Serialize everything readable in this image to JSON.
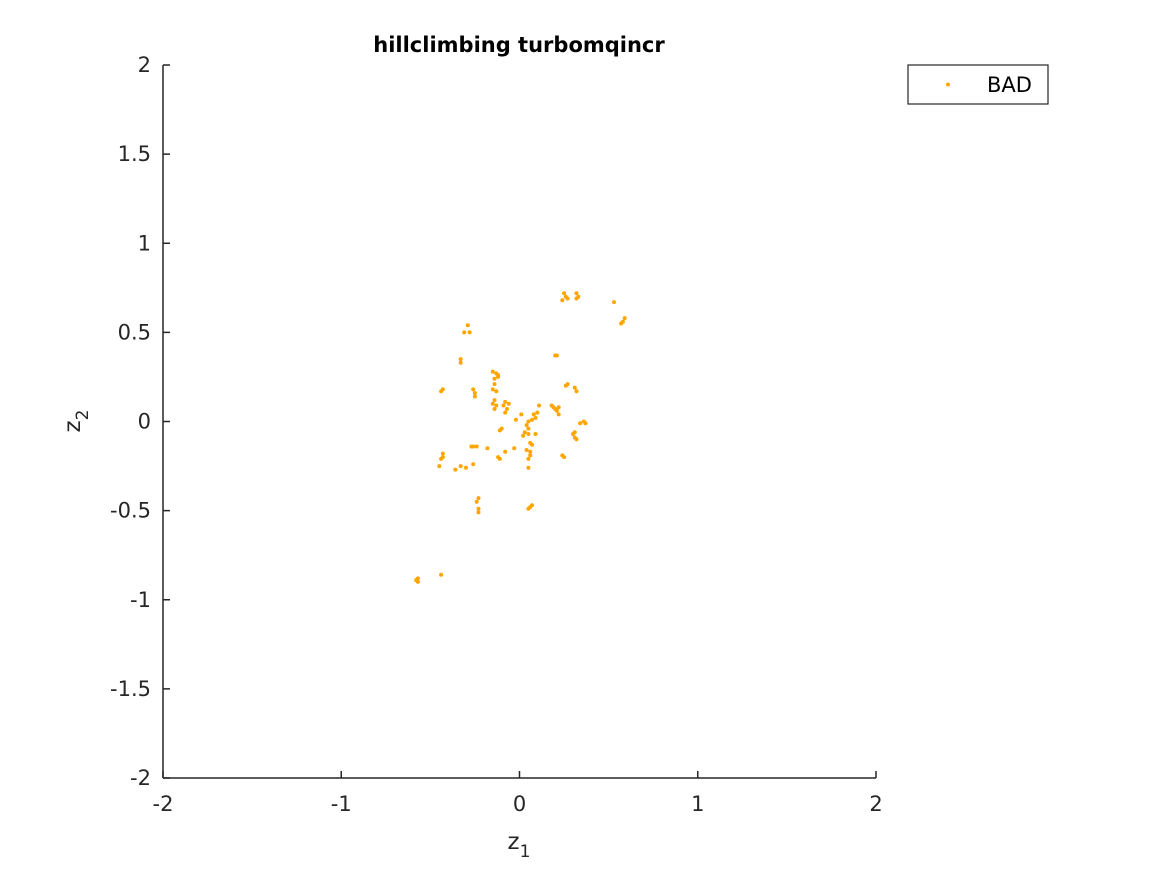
{
  "chart_data": {
    "type": "scatter",
    "title": "hillclimbing turbomqincr",
    "xlabel": "z",
    "xlabel_sub": "1",
    "ylabel": "z",
    "ylabel_sub": "2",
    "xlim": [
      -2,
      2
    ],
    "ylim": [
      -2,
      2
    ],
    "xticks": [
      -2,
      -1,
      0,
      1,
      2
    ],
    "yticks": [
      -2,
      -1.5,
      -1,
      -0.5,
      0,
      0.5,
      1,
      1.5,
      2
    ],
    "xtick_labels": [
      "-2",
      "-1",
      "0",
      "1",
      "2"
    ],
    "ytick_labels": [
      "-2",
      "-1.5",
      "-1",
      "-0.5",
      "0",
      "0.5",
      "1",
      "1.5",
      "2"
    ],
    "grid": false,
    "legend_position": "top-right",
    "series": [
      {
        "name": "BAD",
        "color": "#FFA500",
        "points": [
          [
            0.25,
            0.72
          ],
          [
            0.26,
            0.7
          ],
          [
            0.24,
            0.68
          ],
          [
            0.27,
            0.69
          ],
          [
            0.32,
            0.72
          ],
          [
            0.33,
            0.7
          ],
          [
            0.32,
            0.69
          ],
          [
            0.53,
            0.67
          ],
          [
            0.59,
            0.58
          ],
          [
            0.58,
            0.56
          ],
          [
            0.57,
            0.55
          ],
          [
            -0.29,
            0.54
          ],
          [
            -0.31,
            0.5
          ],
          [
            -0.28,
            0.5
          ],
          [
            -0.33,
            0.35
          ],
          [
            -0.33,
            0.33
          ],
          [
            0.21,
            0.37
          ],
          [
            0.2,
            0.37
          ],
          [
            -0.43,
            0.18
          ],
          [
            -0.44,
            0.17
          ],
          [
            -0.26,
            0.18
          ],
          [
            -0.25,
            0.16
          ],
          [
            -0.25,
            0.14
          ],
          [
            -0.15,
            0.28
          ],
          [
            -0.13,
            0.27
          ],
          [
            -0.12,
            0.26
          ],
          [
            -0.14,
            0.24
          ],
          [
            -0.12,
            0.25
          ],
          [
            -0.14,
            0.21
          ],
          [
            -0.15,
            0.18
          ],
          [
            -0.13,
            0.17
          ],
          [
            -0.14,
            0.12
          ],
          [
            -0.15,
            0.1
          ],
          [
            -0.13,
            0.09
          ],
          [
            -0.14,
            0.07
          ],
          [
            -0.08,
            0.11
          ],
          [
            -0.09,
            0.09
          ],
          [
            -0.06,
            0.1
          ],
          [
            -0.07,
            0.07
          ],
          [
            -0.08,
            0.05
          ],
          [
            -0.02,
            0.01
          ],
          [
            0.01,
            0.04
          ],
          [
            0.05,
            0.0
          ],
          [
            0.04,
            -0.02
          ],
          [
            0.05,
            -0.04
          ],
          [
            0.03,
            -0.06
          ],
          [
            0.05,
            -0.07
          ],
          [
            0.02,
            -0.08
          ],
          [
            0.08,
            0.04
          ],
          [
            0.09,
            0.02
          ],
          [
            0.1,
            0.05
          ],
          [
            0.11,
            0.09
          ],
          [
            0.07,
            0.01
          ],
          [
            0.18,
            0.09
          ],
          [
            0.19,
            0.08
          ],
          [
            0.2,
            0.07
          ],
          [
            0.22,
            0.08
          ],
          [
            0.21,
            0.06
          ],
          [
            0.22,
            0.04
          ],
          [
            0.26,
            0.2
          ],
          [
            0.27,
            0.21
          ],
          [
            0.31,
            0.19
          ],
          [
            0.32,
            0.17
          ],
          [
            0.36,
            0.0
          ],
          [
            0.37,
            -0.01
          ],
          [
            0.34,
            -0.01
          ],
          [
            0.3,
            -0.07
          ],
          [
            0.31,
            -0.09
          ],
          [
            0.32,
            -0.1
          ],
          [
            0.31,
            -0.06
          ],
          [
            -0.11,
            -0.05
          ],
          [
            -0.1,
            -0.04
          ],
          [
            0.09,
            -0.07
          ],
          [
            -0.27,
            -0.14
          ],
          [
            -0.26,
            -0.14
          ],
          [
            -0.24,
            -0.14
          ],
          [
            -0.18,
            -0.15
          ],
          [
            -0.12,
            -0.2
          ],
          [
            -0.11,
            -0.21
          ],
          [
            -0.08,
            -0.17
          ],
          [
            -0.03,
            -0.15
          ],
          [
            0.04,
            -0.16
          ],
          [
            0.06,
            -0.17
          ],
          [
            0.06,
            -0.19
          ],
          [
            0.05,
            -0.21
          ],
          [
            0.07,
            -0.13
          ],
          [
            0.06,
            -0.12
          ],
          [
            0.24,
            -0.19
          ],
          [
            0.25,
            -0.2
          ],
          [
            0.05,
            -0.26
          ],
          [
            -0.43,
            -0.18
          ],
          [
            -0.43,
            -0.2
          ],
          [
            -0.44,
            -0.21
          ],
          [
            -0.45,
            -0.25
          ],
          [
            -0.36,
            -0.27
          ],
          [
            -0.33,
            -0.25
          ],
          [
            -0.3,
            -0.26
          ],
          [
            -0.26,
            -0.24
          ],
          [
            -0.23,
            -0.43
          ],
          [
            -0.24,
            -0.45
          ],
          [
            -0.23,
            -0.49
          ],
          [
            -0.23,
            -0.51
          ],
          [
            0.06,
            -0.48
          ],
          [
            0.05,
            -0.49
          ],
          [
            0.07,
            -0.47
          ],
          [
            -0.58,
            -0.89
          ],
          [
            -0.57,
            -0.9
          ],
          [
            -0.57,
            -0.88
          ],
          [
            -0.44,
            -0.86
          ]
        ]
      }
    ]
  }
}
